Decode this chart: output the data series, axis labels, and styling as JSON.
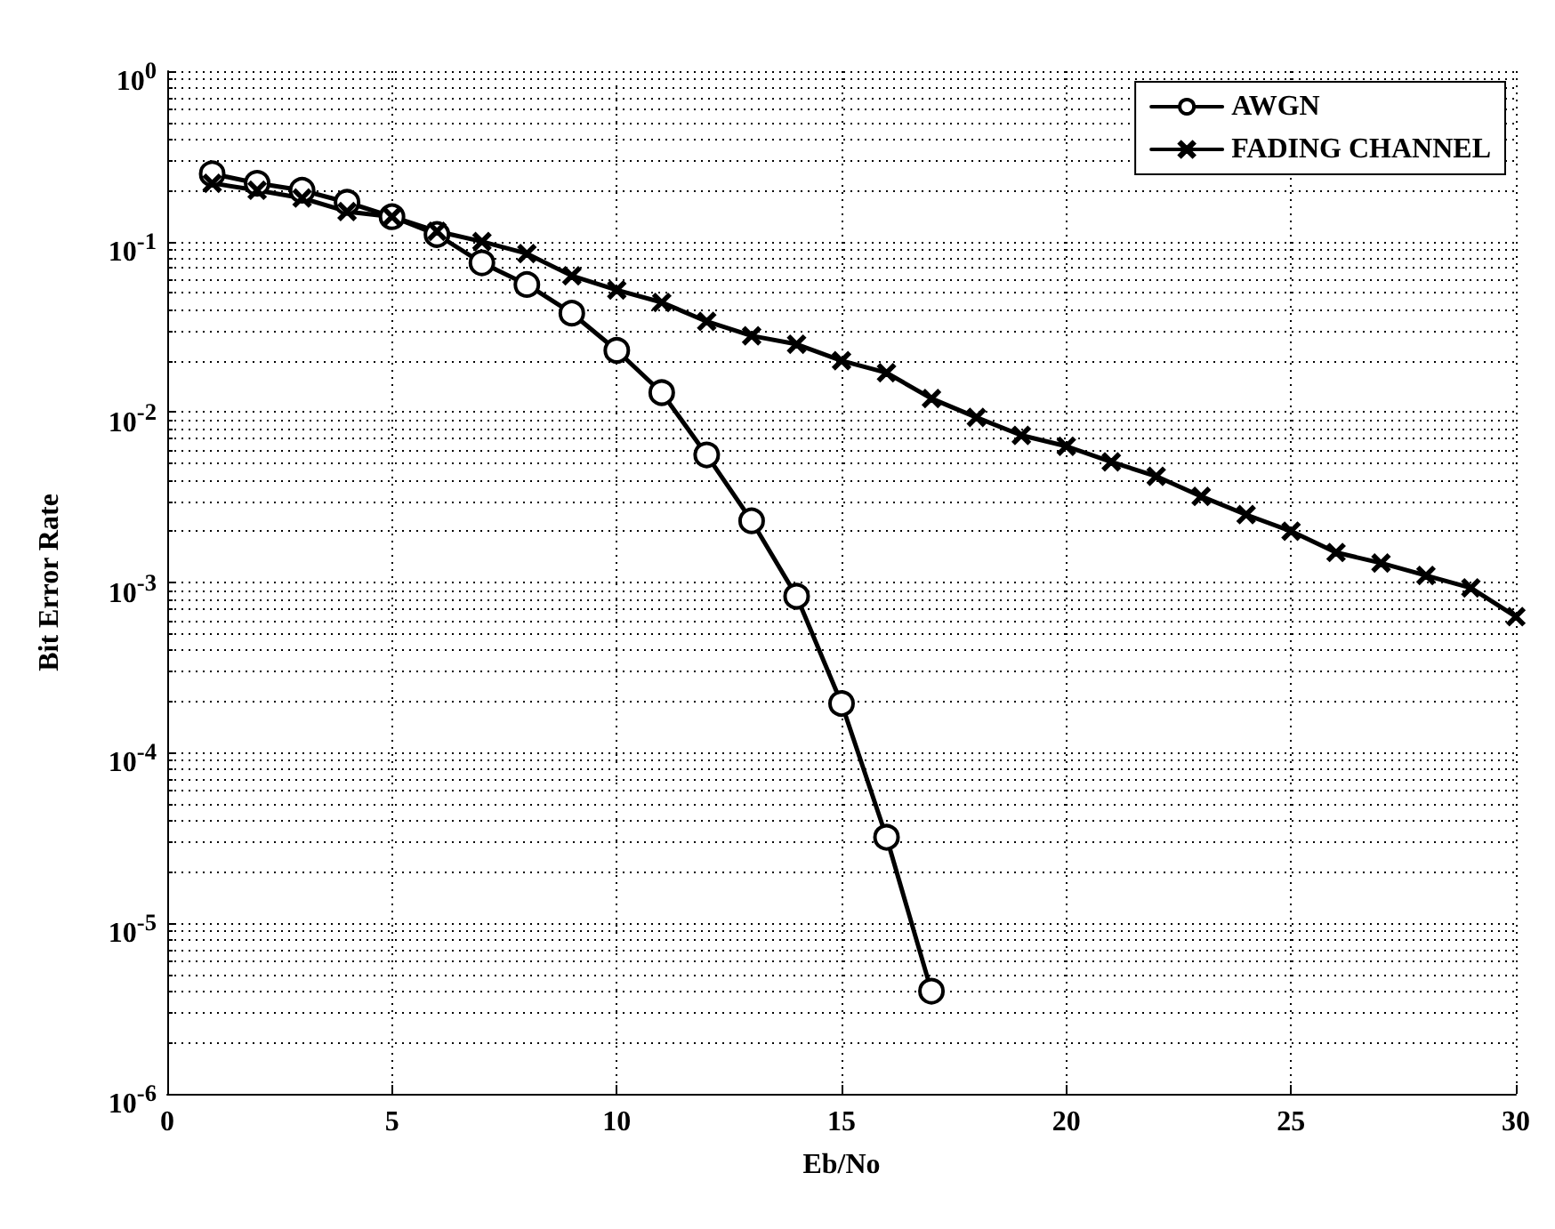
{
  "chart_data": {
    "type": "line",
    "xlabel": "Eb/No",
    "ylabel": "Bit Error Rate",
    "log": "y",
    "grid": true,
    "legend": "top right",
    "xlim": [
      0,
      30
    ],
    "xticks": [
      0,
      5,
      10,
      15,
      20,
      25,
      30
    ],
    "ylim": [
      1e-06,
      1
    ],
    "yticks": [
      {
        "value": 1e-06,
        "label": "10$^{-6}$"
      },
      {
        "value": 1e-05,
        "label": "10$^{-5}$"
      },
      {
        "value": 0.0001,
        "label": "10$^{-4}$"
      },
      {
        "value": 0.001,
        "label": "10$^{-3}$"
      },
      {
        "value": 0.01,
        "label": "10$^{-2}$"
      },
      {
        "value": 0.1,
        "label": "10$^{-1}$"
      },
      {
        "value": 1,
        "label": "10$^{0}$"
      }
    ],
    "line_style": "solid",
    "series": [
      {
        "name": "AWGN",
        "color": "#000000",
        "marker": "circle",
        "x": [
          1,
          2,
          3,
          4,
          5,
          6,
          7,
          8,
          9,
          10,
          11,
          12,
          13,
          14,
          15,
          16,
          17
        ],
        "values": [
          0.25,
          0.22,
          0.2,
          0.17,
          0.14,
          0.11,
          0.075,
          0.056,
          0.038,
          0.023,
          0.013,
          0.0056,
          0.0023,
          0.00083,
          0.000195,
          3.2e-05,
          4e-06
        ]
      },
      {
        "name": "FADING CHANNEL",
        "color": "#000000",
        "marker": "cross",
        "x": [
          1,
          2,
          3,
          4,
          5,
          6,
          7,
          8,
          9,
          10,
          11,
          12,
          13,
          14,
          15,
          16,
          17,
          18,
          19,
          20,
          21,
          22,
          23,
          24,
          25,
          26,
          27,
          28,
          29,
          30
        ],
        "values": [
          0.22,
          0.2,
          0.18,
          0.15,
          0.14,
          0.115,
          0.1,
          0.085,
          0.063,
          0.052,
          0.044,
          0.034,
          0.028,
          0.025,
          0.02,
          0.017,
          0.012,
          0.0093,
          0.0073,
          0.0063,
          0.0051,
          0.0042,
          0.0032,
          0.0025,
          0.002,
          0.0015,
          0.0013,
          0.0011,
          0.00093,
          0.00063
        ]
      }
    ]
  }
}
